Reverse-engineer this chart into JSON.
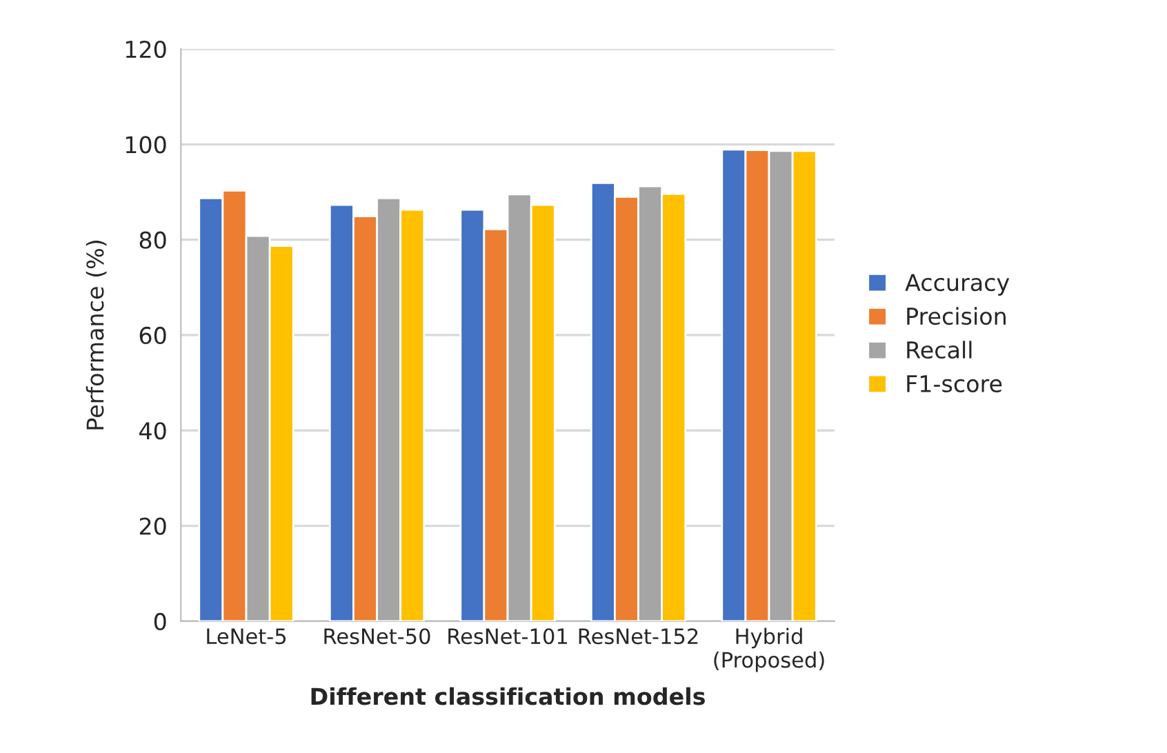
{
  "chart_data": {
    "type": "bar",
    "xlabel": "Different classification models",
    "ylabel": "Performance (%)",
    "categories": [
      "LeNet-5",
      "ResNet-50",
      "ResNet-101",
      "ResNet-152",
      "Hybrid\n(Proposed)"
    ],
    "series": [
      {
        "name": "Accuracy",
        "color": "#4472c4",
        "values": [
          88.7,
          87.3,
          86.3,
          91.9,
          98.9
        ]
      },
      {
        "name": "Precision",
        "color": "#ed7d31",
        "values": [
          90.3,
          84.9,
          82.2,
          89.0,
          98.8
        ]
      },
      {
        "name": "Recall",
        "color": "#a5a5a5",
        "values": [
          80.8,
          88.7,
          89.5,
          91.2,
          98.6
        ]
      },
      {
        "name": "F1-score",
        "color": "#ffc000",
        "values": [
          78.7,
          86.3,
          87.3,
          89.6,
          98.6
        ]
      }
    ],
    "ylim": [
      0,
      120
    ],
    "yticks": [
      0,
      20,
      40,
      60,
      80,
      100,
      120
    ],
    "grid": "y",
    "legend": "right"
  }
}
